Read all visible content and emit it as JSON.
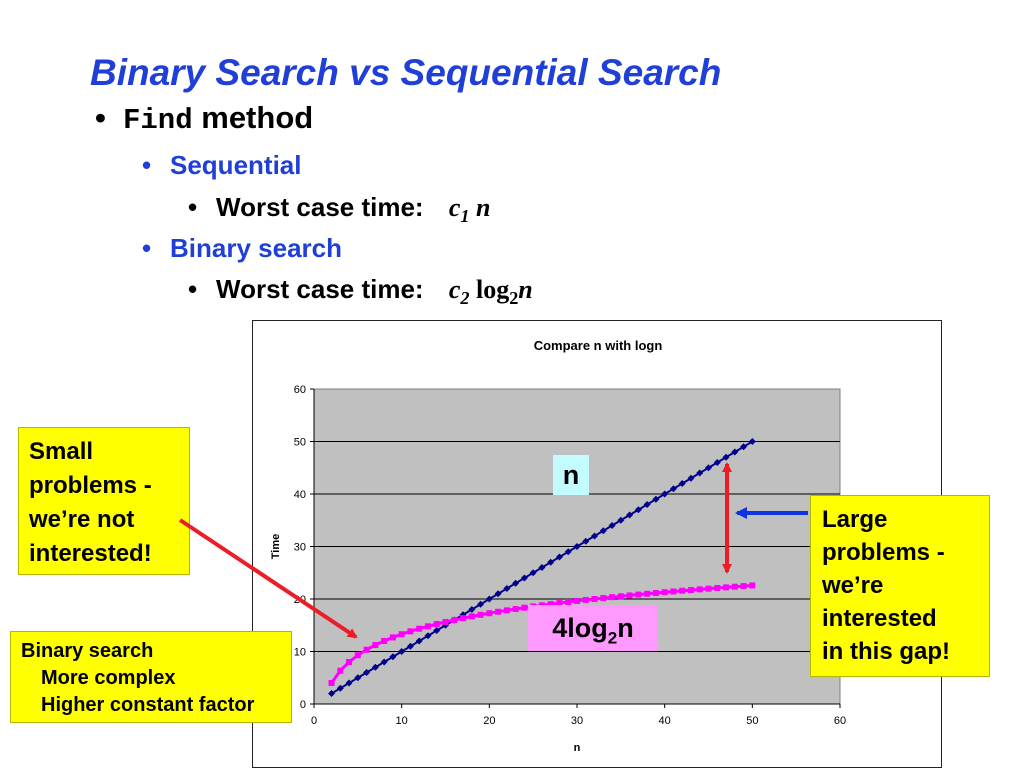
{
  "slide": {
    "title": "Binary Search vs Sequential Search",
    "bullet_code": "Find",
    "bullet_text": "method",
    "sequential": {
      "label": "Sequential",
      "worst_label": "Worst case time:",
      "coef": "c",
      "coef_sub": "1",
      "var": "n"
    },
    "binary": {
      "label": "Binary search",
      "worst_label": "Worst case time:",
      "coef": "c",
      "coef_sub": "2",
      "log": "log",
      "log_sub": "2",
      "var": "n"
    }
  },
  "chart_data": {
    "type": "line",
    "title": "Compare n with logn",
    "xlabel": "n",
    "ylabel": "Time",
    "xlim": [
      0,
      60
    ],
    "ylim": [
      0,
      60
    ],
    "xticks": [
      0,
      10,
      20,
      30,
      40,
      50,
      60
    ],
    "yticks": [
      0,
      10,
      20,
      30,
      40,
      50,
      60
    ],
    "grid": true,
    "series": [
      {
        "name": "n",
        "color": "#00008b",
        "marker": "diamond",
        "x": [
          2,
          3,
          4,
          5,
          6,
          7,
          8,
          9,
          10,
          11,
          12,
          13,
          14,
          15,
          16,
          17,
          18,
          19,
          20,
          21,
          22,
          23,
          24,
          25,
          26,
          27,
          28,
          29,
          30,
          31,
          32,
          33,
          34,
          35,
          36,
          37,
          38,
          39,
          40,
          41,
          42,
          43,
          44,
          45,
          46,
          47,
          48,
          49,
          50
        ],
        "y": [
          2,
          3,
          4,
          5,
          6,
          7,
          8,
          9,
          10,
          11,
          12,
          13,
          14,
          15,
          16,
          17,
          18,
          19,
          20,
          21,
          22,
          23,
          24,
          25,
          26,
          27,
          28,
          29,
          30,
          31,
          32,
          33,
          34,
          35,
          36,
          37,
          38,
          39,
          40,
          41,
          42,
          43,
          44,
          45,
          46,
          47,
          48,
          49,
          50
        ]
      },
      {
        "name": "4log2n",
        "color": "#ff00ff",
        "marker": "square",
        "x": [
          2,
          3,
          4,
          5,
          6,
          7,
          8,
          9,
          10,
          11,
          12,
          13,
          14,
          15,
          16,
          17,
          18,
          19,
          20,
          21,
          22,
          23,
          24,
          25,
          26,
          27,
          28,
          29,
          30,
          31,
          32,
          33,
          34,
          35,
          36,
          37,
          38,
          39,
          40,
          41,
          42,
          43,
          44,
          45,
          46,
          47,
          48,
          49,
          50
        ],
        "y": [
          4,
          6.34,
          8,
          9.29,
          10.34,
          11.23,
          12,
          12.68,
          13.29,
          13.84,
          14.34,
          14.8,
          15.23,
          15.63,
          16,
          16.35,
          16.68,
          16.99,
          17.29,
          17.57,
          17.84,
          18.09,
          18.34,
          18.58,
          18.8,
          19.02,
          19.23,
          19.43,
          19.63,
          19.82,
          20,
          20.18,
          20.35,
          20.52,
          20.68,
          20.84,
          20.99,
          21.14,
          21.29,
          21.43,
          21.57,
          21.71,
          21.84,
          21.97,
          22.09,
          22.22,
          22.34,
          22.46,
          22.58
        ]
      }
    ]
  },
  "labels": {
    "n_tag": "n",
    "log_tag_main": "4log",
    "log_tag_sub": "2",
    "log_tag_end": "n"
  },
  "callouts": {
    "small_problems": [
      "Small",
      "problems -",
      "we’re not",
      "interested!"
    ],
    "large_problems": [
      "Large",
      "problems -",
      "we’re",
      "interested",
      "in this gap!"
    ],
    "binary_search": {
      "title": "Binary search",
      "lines": [
        "More complex",
        "Higher constant factor"
      ]
    }
  }
}
